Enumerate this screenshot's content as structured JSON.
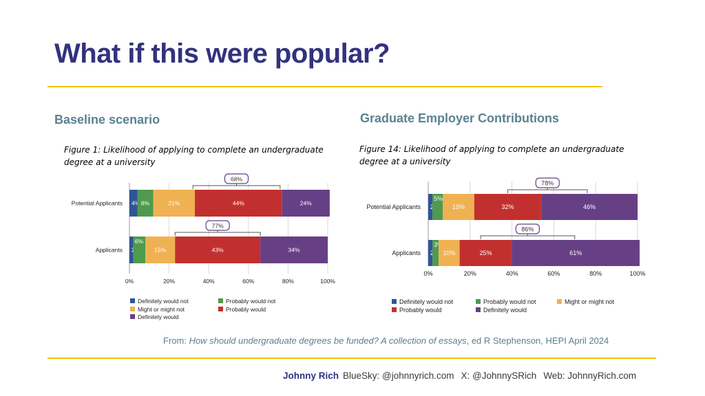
{
  "slide": {
    "title": "What if this were popular?",
    "left_heading": "Baseline scenario",
    "right_heading": "Graduate Employer Contributions",
    "source_prefix": "From: ",
    "source_title": "How should undergraduate degrees be funded? A collection of essays",
    "source_suffix": ", ed R Stephenson, HEPI April 2024",
    "footer_name": "Johnny Rich",
    "footer_bluesky": "BlueSky: @johnnyrich.com",
    "footer_x": "X: @JohnnySRich",
    "footer_web": "Web: JohnnyRich.com"
  },
  "chart_data": [
    {
      "type": "bar",
      "orientation": "horizontal",
      "stacked": true,
      "title": "Figure 1: Likelihood of applying to complete an undergraduate degree at a university",
      "categories": [
        "Potential Applicants",
        "Applicants"
      ],
      "series": [
        {
          "name": "Definitely would not",
          "values": [
            4,
            2
          ],
          "labels": [
            "4%",
            "2%"
          ],
          "color": "#2f5596"
        },
        {
          "name": "Probably would not",
          "values": [
            8,
            6
          ],
          "labels": [
            "8%",
            "6%"
          ],
          "color": "#4f9a4f"
        },
        {
          "name": "Might or might not",
          "values": [
            21,
            15
          ],
          "labels": [
            "21%",
            "15%"
          ],
          "color": "#f0b152"
        },
        {
          "name": "Probably would",
          "values": [
            44,
            43
          ],
          "labels": [
            "44%",
            "43%"
          ],
          "color": "#c1302e"
        },
        {
          "name": "Definitely would",
          "values": [
            24,
            34
          ],
          "labels": [
            "24%",
            "34%"
          ],
          "color": "#663f85"
        }
      ],
      "annotations": [
        {
          "category": "Potential Applicants",
          "label": "68%",
          "from": 32,
          "to": 76
        },
        {
          "category": "Applicants",
          "label": "77%",
          "from": 23,
          "to": 66
        }
      ],
      "x_ticks": [
        "0%",
        "20%",
        "40%",
        "60%",
        "80%",
        "100%"
      ],
      "xlim": [
        0,
        100
      ],
      "grid": true,
      "legend": "bottom",
      "legend_order": [
        "Definitely would not",
        "Probably would not",
        "Might or might not",
        "Probably would",
        "Definitely would"
      ]
    },
    {
      "type": "bar",
      "orientation": "horizontal",
      "stacked": true,
      "title": "Figure 14: Likelihood of applying to complete an undergraduate degree at a university",
      "categories": [
        "Potential Applicants",
        "Applicants"
      ],
      "series": [
        {
          "name": "Definitely would not",
          "values": [
            2,
            2
          ],
          "labels": [
            "2%",
            "2%"
          ],
          "color": "#2f5596"
        },
        {
          "name": "Probably would not",
          "values": [
            5,
            3
          ],
          "labels": [
            "5%",
            "3%"
          ],
          "color": "#4f9a4f"
        },
        {
          "name": "Might or might not",
          "values": [
            15,
            10
          ],
          "labels": [
            "15%",
            "10%"
          ],
          "color": "#f0b152"
        },
        {
          "name": "Probably would",
          "values": [
            32,
            25
          ],
          "labels": [
            "32%",
            "25%"
          ],
          "color": "#c1302e"
        },
        {
          "name": "Definitely would",
          "values": [
            46,
            61
          ],
          "labels": [
            "46%",
            "61%"
          ],
          "color": "#663f85"
        }
      ],
      "annotations": [
        {
          "category": "Potential Applicants",
          "label": "78%",
          "from": 38,
          "to": 76
        },
        {
          "category": "Applicants",
          "label": "86%",
          "from": 25,
          "to": 70
        }
      ],
      "x_ticks": [
        "0%",
        "20%",
        "40%",
        "60%",
        "80%",
        "100%"
      ],
      "xlim": [
        0,
        100
      ],
      "grid": true,
      "legend": "bottom",
      "legend_order": [
        "Definitely would not",
        "Probably would not",
        "Might or might not",
        "Probably would",
        "Definitely would"
      ]
    }
  ]
}
